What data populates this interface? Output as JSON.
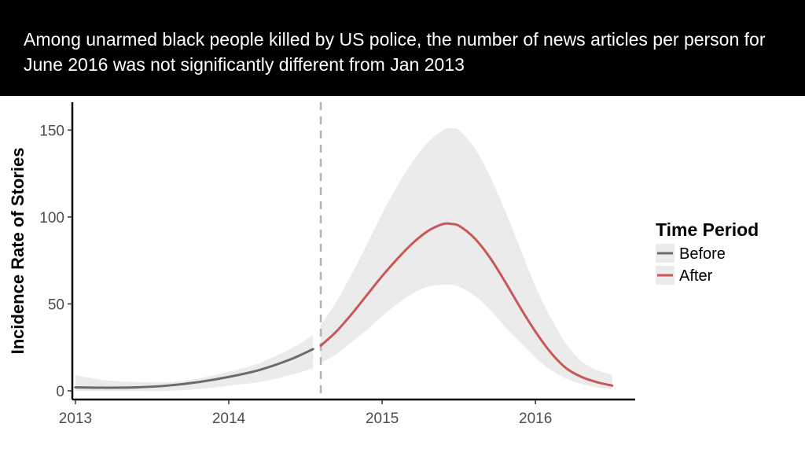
{
  "title": "Among unarmed black people killed by US police, the number of news articles per person for June 2016 was not significantly different from Jan 2013",
  "chart_data": {
    "type": "line",
    "title": "Among unarmed black people killed by US police, the number of news articles per person for June 2016 was not significantly different from Jan 2013",
    "xlabel": "",
    "ylabel": "Incidence Rate of Stories",
    "xlim": [
      2012.98,
      2016.65
    ],
    "ylim": [
      -5,
      166
    ],
    "x_ticks": [
      2013,
      2014,
      2015,
      2016
    ],
    "x_tick_labels": [
      "2013",
      "2014",
      "2015",
      "2016"
    ],
    "y_ticks": [
      0,
      50,
      100,
      150
    ],
    "y_tick_labels": [
      "0",
      "50",
      "100",
      "150"
    ],
    "grid": false,
    "vline_x": 2014.6,
    "legend": {
      "title": "Time Period",
      "position": "right"
    },
    "series": [
      {
        "name": "Before",
        "color": "#6b6b6b",
        "x": [
          2013.0,
          2013.2,
          2013.4,
          2013.6,
          2013.8,
          2014.0,
          2014.2,
          2014.4,
          2014.55
        ],
        "y": [
          2,
          1.8,
          2,
          3,
          5,
          8,
          12,
          18,
          24
        ],
        "lower": [
          0,
          0,
          0,
          0,
          1,
          3,
          5,
          9,
          13
        ],
        "upper": [
          9,
          6,
          5,
          5,
          7,
          11,
          16,
          24,
          32
        ]
      },
      {
        "name": "After",
        "color": "#c8575a",
        "x": [
          2014.6,
          2014.7,
          2014.8,
          2014.9,
          2015.0,
          2015.1,
          2015.2,
          2015.3,
          2015.4,
          2015.45,
          2015.5,
          2015.6,
          2015.7,
          2015.8,
          2015.9,
          2016.0,
          2016.1,
          2016.2,
          2016.3,
          2016.4,
          2016.5
        ],
        "y": [
          26,
          34,
          44,
          55,
          66,
          76,
          85,
          92,
          96,
          96,
          95,
          88,
          77,
          63,
          48,
          34,
          22,
          13,
          8,
          5,
          3
        ],
        "lower": [
          16,
          21,
          28,
          35,
          43,
          50,
          56,
          60,
          61,
          61,
          60,
          55,
          47,
          37,
          28,
          19,
          12,
          7,
          4,
          2,
          1
        ],
        "upper": [
          38,
          51,
          67,
          84,
          102,
          118,
          132,
          143,
          150,
          151,
          150,
          140,
          124,
          104,
          82,
          60,
          42,
          27,
          17,
          12,
          9
        ]
      }
    ]
  }
}
